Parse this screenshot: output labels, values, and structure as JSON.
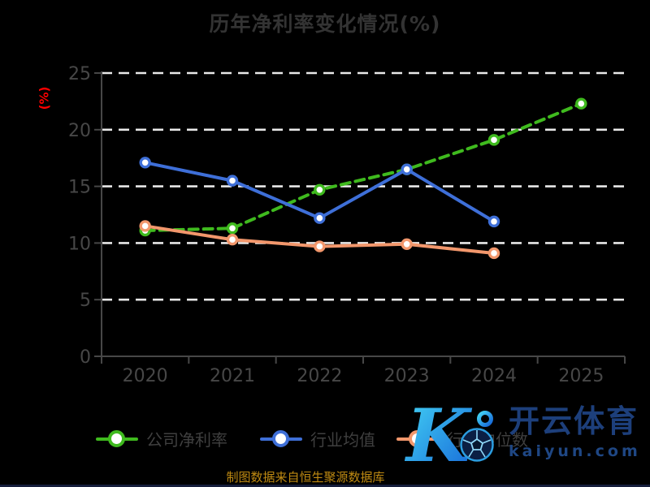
{
  "page": {
    "background": "#000000",
    "bottom_bar_color": "#151d3b"
  },
  "chart_data": {
    "type": "line",
    "title": "历年净利率变化情况(%)",
    "title_color": "#333333",
    "ylabel": "(%)",
    "ylabel_color": "#ff0000",
    "categories": [
      "2020",
      "2021",
      "2022",
      "2023",
      "2024",
      "2025"
    ],
    "series": [
      {
        "name": "公司净利率",
        "color": "#3fba1e",
        "style": "dashed",
        "values": [
          11.1,
          11.3,
          14.7,
          16.5,
          19.1,
          22.3
        ]
      },
      {
        "name": "行业均值",
        "color": "#3e6fd8",
        "style": "solid",
        "values": [
          17.1,
          15.5,
          12.2,
          16.5,
          11.9,
          null
        ]
      },
      {
        "name": "行业中位数",
        "color": "#f2976c",
        "style": "solid",
        "values": [
          11.5,
          10.3,
          9.7,
          9.9,
          9.1,
          null
        ]
      }
    ],
    "ylim": [
      0,
      25
    ],
    "yticks": [
      0,
      5,
      10,
      15,
      20,
      25
    ],
    "grid": "horizontal-dashed",
    "grid_color": "#e8e8e8",
    "axis_color": "#474747",
    "tick_label_color": "#474747",
    "legend_position": "bottom",
    "marker": "white-filled-circle"
  },
  "watermark": {
    "logo_letter": "K",
    "brand": "开云体育",
    "domain": "kaiyun.com",
    "navy": "#1d3f7b",
    "gradient_start": "#45d6f5",
    "gradient_end": "#1565d8"
  },
  "footer": {
    "source_note": "制图数据来自恒生聚源数据库",
    "color": "#bf8a12"
  }
}
